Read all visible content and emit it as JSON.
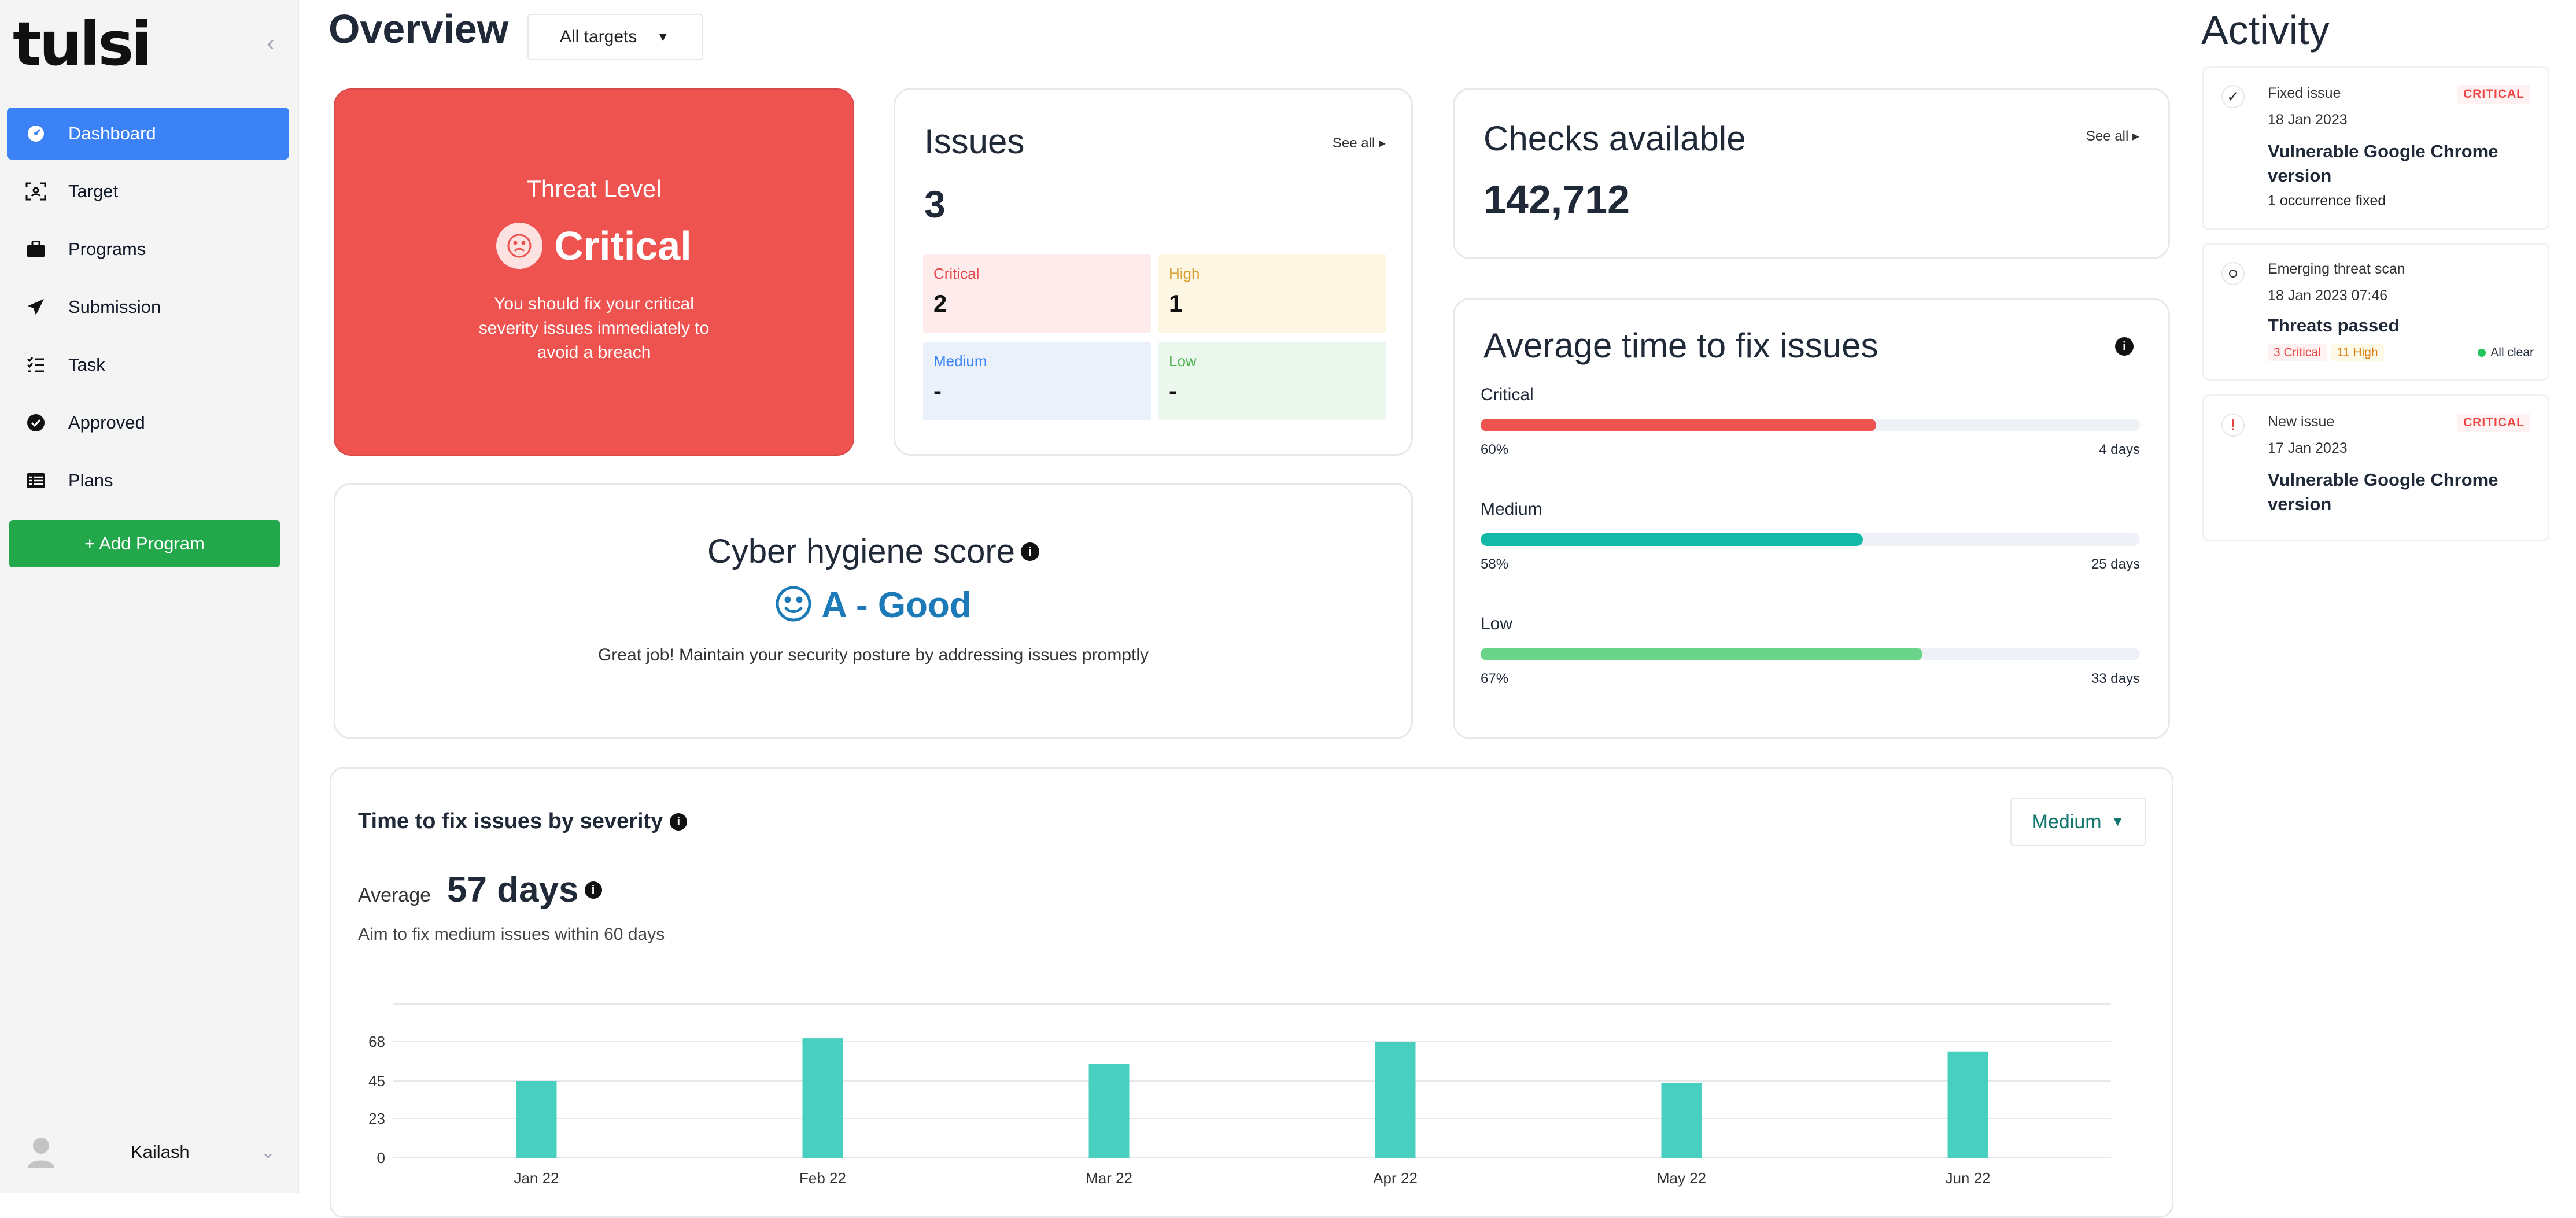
{
  "sidebar": {
    "logo": "tulsi",
    "items": [
      {
        "label": "Dashboard",
        "icon": "dashboard-icon"
      },
      {
        "label": "Target",
        "icon": "target-icon"
      },
      {
        "label": "Programs",
        "icon": "briefcase-icon"
      },
      {
        "label": "Submission",
        "icon": "send-icon"
      },
      {
        "label": "Task",
        "icon": "checklist-icon"
      },
      {
        "label": "Approved",
        "icon": "check-circle-icon"
      },
      {
        "label": "Plans",
        "icon": "list-icon"
      }
    ],
    "add_program_label": "+ Add Program",
    "user_name": "Kailash"
  },
  "header": {
    "title": "Overview",
    "target_select": "All targets"
  },
  "threat": {
    "title": "Threat Level",
    "level": "Critical",
    "message": "You should fix your critical severity issues immediately to avoid a breach"
  },
  "issues": {
    "title": "Issues",
    "see_all": "See all",
    "count": "3",
    "critical_label": "Critical",
    "critical_value": "2",
    "high_label": "High",
    "high_value": "1",
    "medium_label": "Medium",
    "medium_value": "-",
    "low_label": "Low",
    "low_value": "-"
  },
  "checks": {
    "title": "Checks available",
    "see_all": "See all",
    "count": "142,712"
  },
  "hygiene": {
    "title": "Cyber hygiene score",
    "grade": "A - Good",
    "message": "Great job! Maintain your security posture by addressing issues promptly"
  },
  "avg_fix": {
    "title": "Average time to fix issues",
    "rows": [
      {
        "label": "Critical",
        "percent": "60%",
        "days": "4 days",
        "fraction": 0.6,
        "color": "#ef5350"
      },
      {
        "label": "Medium",
        "percent": "58%",
        "days": "25 days",
        "fraction": 0.58,
        "color": "#14b8a6"
      },
      {
        "label": "Low",
        "percent": "67%",
        "days": "33 days",
        "fraction": 0.67,
        "color": "#6ad48a"
      }
    ]
  },
  "severity_time": {
    "title": "Time to fix issues by severity",
    "dropdown": "Medium",
    "average_label": "Average",
    "average_value": "57 days",
    "aim": "Aim to fix medium issues within 60 days"
  },
  "chart_data": {
    "type": "bar",
    "categories": [
      "Jan 22",
      "Feb 22",
      "Mar 22",
      "Apr 22",
      "May 22",
      "Jun 22"
    ],
    "values": [
      45,
      70,
      55,
      68,
      44,
      62
    ],
    "yticks": [
      0,
      23,
      45,
      68
    ],
    "ylim": [
      0,
      90
    ],
    "color": "#48cfbf",
    "grid": true
  },
  "activity": {
    "title": "Activity",
    "items": [
      {
        "type": "Fixed issue",
        "date": "18 Jan 2023",
        "badge": "CRITICAL",
        "title": "Vulnerable Google Chrome version",
        "detail": "1 occurrence fixed"
      },
      {
        "type": "Emerging threat scan",
        "date": "18 Jan 2023 07:46",
        "title": "Threats passed",
        "tag_critical": "3 Critical",
        "tag_high": "11 High",
        "tag_clear": "All clear"
      },
      {
        "type": "New issue",
        "date": "17 Jan 2023",
        "badge": "CRITICAL",
        "title": "Vulnerable Google Chrome version"
      }
    ]
  }
}
